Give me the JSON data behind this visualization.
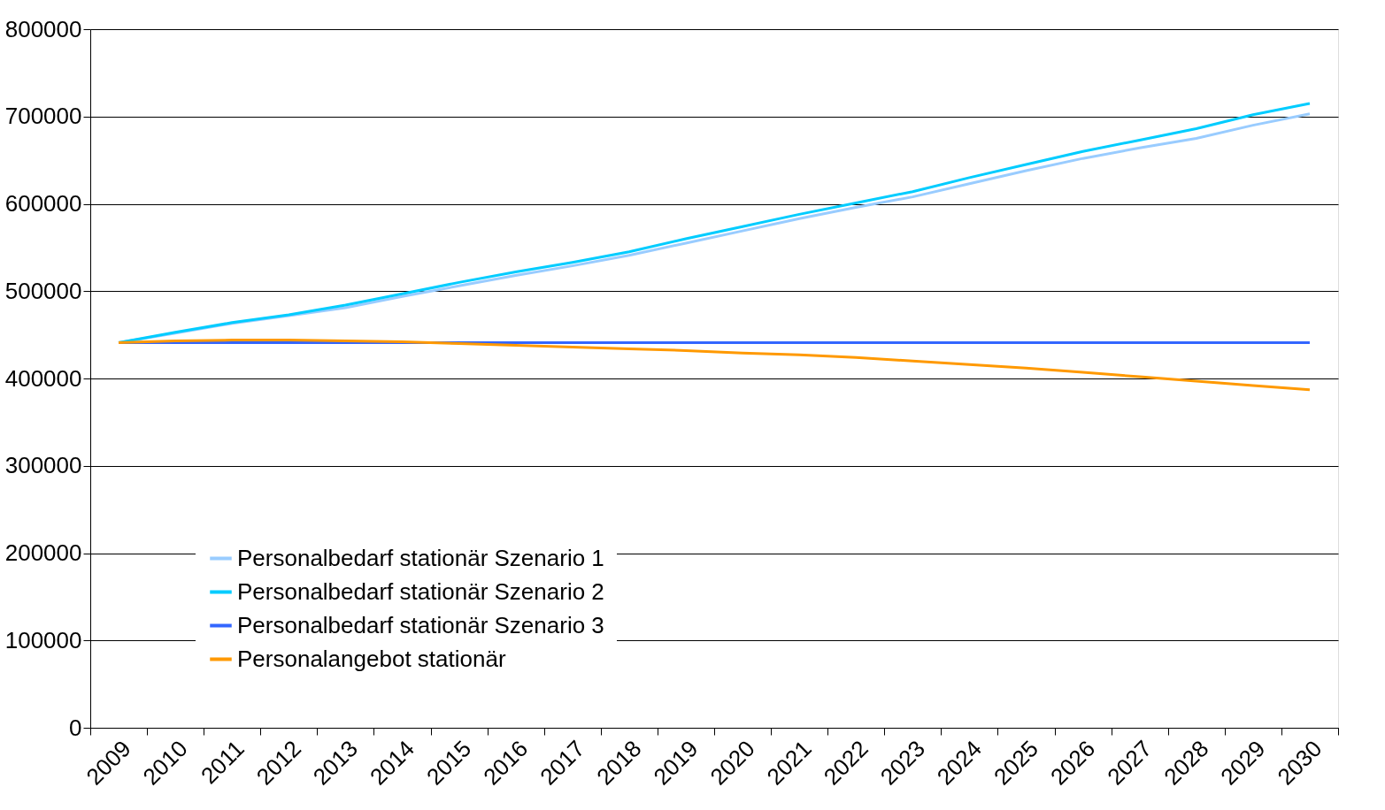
{
  "chart_data": {
    "type": "line",
    "categories": [
      "2009",
      "2010",
      "2011",
      "2012",
      "2013",
      "2014",
      "2015",
      "2016",
      "2017",
      "2018",
      "2019",
      "2020",
      "2021",
      "2022",
      "2023",
      "2024",
      "2025",
      "2026",
      "2027",
      "2028",
      "2029",
      "2030"
    ],
    "ylim": [
      0,
      800000
    ],
    "yticks": [
      0,
      100000,
      200000,
      300000,
      400000,
      500000,
      600000,
      700000,
      800000
    ],
    "grid": "y",
    "legend": "bottom left",
    "line_style": "solid",
    "marker": "none",
    "series": [
      {
        "name": "Personalbedarf stationär Szenario 1",
        "color": "#99ccff",
        "values": [
          441000,
          452000,
          463000,
          472000,
          481000,
          494000,
          506000,
          518000,
          529000,
          541000,
          555000,
          569000,
          583000,
          596000,
          608000,
          623000,
          638000,
          652000,
          664000,
          675000,
          690000,
          703000
        ]
      },
      {
        "name": "Personalbedarf stationär Szenario 2",
        "color": "#00ccff",
        "values": [
          441000,
          453000,
          464000,
          473000,
          484000,
          497000,
          510000,
          522000,
          533000,
          545000,
          560000,
          574000,
          588000,
          601000,
          614000,
          630000,
          645000,
          660000,
          673000,
          686000,
          702000,
          715000
        ]
      },
      {
        "name": "Personalbedarf stationär Szenario 3",
        "color": "#3366ff",
        "values": [
          441000,
          441000,
          441000,
          441000,
          441000,
          441000,
          441000,
          441000,
          441000,
          441000,
          441000,
          441000,
          441000,
          441000,
          441000,
          441000,
          441000,
          441000,
          441000,
          441000,
          441000,
          441000
        ]
      },
      {
        "name": "Personalangebot stationär",
        "color": "#ff9900",
        "values": [
          441000,
          443000,
          444000,
          444000,
          443000,
          442000,
          440000,
          438000,
          436000,
          434000,
          432000,
          429000,
          427000,
          424000,
          420000,
          416000,
          412000,
          407000,
          402000,
          397000,
          392000,
          387000
        ]
      }
    ]
  }
}
